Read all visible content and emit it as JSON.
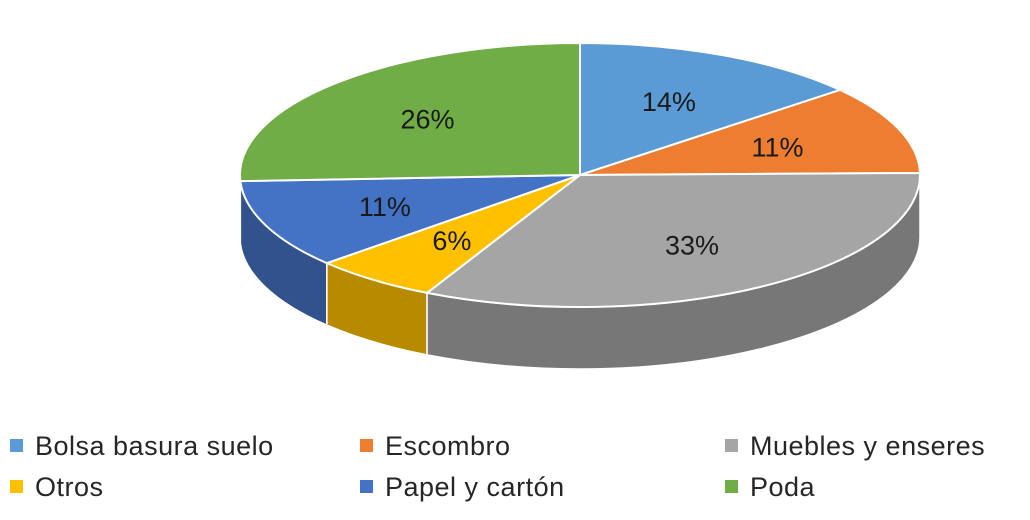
{
  "chart_data": {
    "type": "pie",
    "title": "",
    "categories": [
      "Bolsa basura suelo",
      "Escombro",
      "Muebles y enseres",
      "Otros",
      "Papel y cartón",
      "Poda"
    ],
    "values": [
      14,
      11,
      33,
      6,
      11,
      26
    ],
    "labels": [
      "14%",
      "11%",
      "33%",
      "6%",
      "11%",
      "26%"
    ],
    "colors": [
      "#5B9BD5",
      "#ED7D31",
      "#A5A5A5",
      "#FFC000",
      "#4472C4",
      "#70AD47"
    ],
    "legend_position": "bottom",
    "style": "3d-exploded-pie"
  },
  "legend": {
    "items": [
      {
        "label": "Bolsa basura suelo",
        "color": "#5B9BD5"
      },
      {
        "label": "Escombro",
        "color": "#ED7D31"
      },
      {
        "label": "Muebles y enseres",
        "color": "#A5A5A5"
      },
      {
        "label": "Otros",
        "color": "#FFC000"
      },
      {
        "label": "Papel y cartón",
        "color": "#4472C4"
      },
      {
        "label": "Poda",
        "color": "#70AD47"
      }
    ]
  }
}
